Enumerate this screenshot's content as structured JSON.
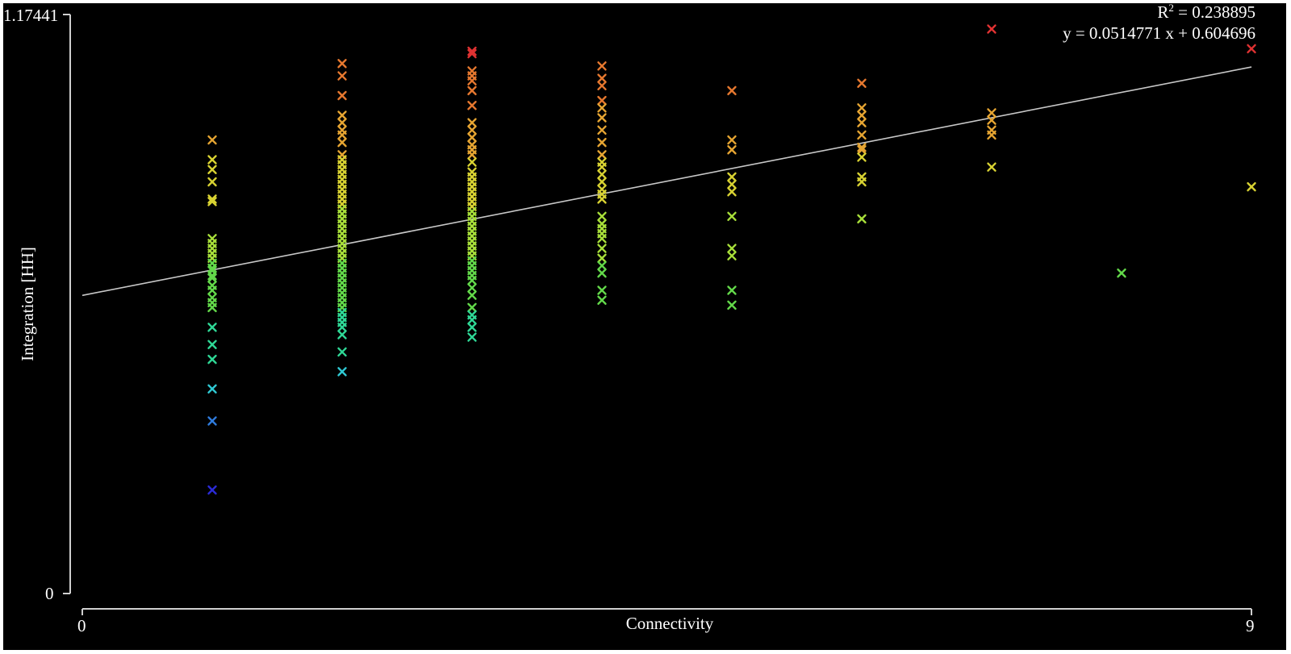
{
  "chart_data": {
    "type": "scatter",
    "title": "",
    "xlabel": "Connectivity",
    "ylabel": "Integration [HH]",
    "xlim": [
      0,
      9
    ],
    "ylim": [
      0,
      1.17441
    ],
    "x_tick_labels": [
      "0",
      "9"
    ],
    "y_tick_labels": [
      "0",
      "1.17441"
    ],
    "grid": false,
    "background": "#000000",
    "annotations": {
      "r2_label": "R",
      "r2_superscript": "2",
      "r2_value": " = 0.238895",
      "equation": "y = 0.0514771 x + 0.604696"
    },
    "regression": {
      "slope": 0.0514771,
      "intercept": 0.604696
    },
    "colormap": [
      "#2b2bd8",
      "#2f7bdc",
      "#2fc8d2",
      "#2fd896",
      "#63d94a",
      "#a8df3a",
      "#d8d232",
      "#e6a532",
      "#e6782f",
      "#e03232"
    ],
    "points": [
      {
        "x": 1,
        "y": 0.92
      },
      {
        "x": 1,
        "y": 0.88
      },
      {
        "x": 1,
        "y": 0.86
      },
      {
        "x": 1,
        "y": 0.835
      },
      {
        "x": 1,
        "y": 0.8
      },
      {
        "x": 1,
        "y": 0.795
      },
      {
        "x": 1,
        "y": 0.72
      },
      {
        "x": 1,
        "y": 0.71
      },
      {
        "x": 1,
        "y": 0.7
      },
      {
        "x": 1,
        "y": 0.69
      },
      {
        "x": 1,
        "y": 0.68
      },
      {
        "x": 1,
        "y": 0.67
      },
      {
        "x": 1,
        "y": 0.66
      },
      {
        "x": 1,
        "y": 0.655
      },
      {
        "x": 1,
        "y": 0.645
      },
      {
        "x": 1,
        "y": 0.64
      },
      {
        "x": 1,
        "y": 0.625
      },
      {
        "x": 1,
        "y": 0.615
      },
      {
        "x": 1,
        "y": 0.6
      },
      {
        "x": 1,
        "y": 0.59
      },
      {
        "x": 1,
        "y": 0.58
      },
      {
        "x": 1,
        "y": 0.54
      },
      {
        "x": 1,
        "y": 0.505
      },
      {
        "x": 1,
        "y": 0.475
      },
      {
        "x": 1,
        "y": 0.415
      },
      {
        "x": 1,
        "y": 0.35
      },
      {
        "x": 1,
        "y": 0.21
      },
      {
        "x": 2,
        "y": 1.075
      },
      {
        "x": 2,
        "y": 1.05
      },
      {
        "x": 2,
        "y": 1.01
      },
      {
        "x": 2,
        "y": 0.97
      },
      {
        "x": 2,
        "y": 0.955
      },
      {
        "x": 2,
        "y": 0.94
      },
      {
        "x": 2,
        "y": 0.93
      },
      {
        "x": 2,
        "y": 0.915
      },
      {
        "x": 2,
        "y": 0.89
      },
      {
        "x": 2,
        "y": 0.88
      },
      {
        "x": 2,
        "y": 0.87
      },
      {
        "x": 2,
        "y": 0.86
      },
      {
        "x": 2,
        "y": 0.85
      },
      {
        "x": 2,
        "y": 0.84
      },
      {
        "x": 2,
        "y": 0.83
      },
      {
        "x": 2,
        "y": 0.82
      },
      {
        "x": 2,
        "y": 0.81
      },
      {
        "x": 2,
        "y": 0.8
      },
      {
        "x": 2,
        "y": 0.79
      },
      {
        "x": 2,
        "y": 0.78
      },
      {
        "x": 2,
        "y": 0.77
      },
      {
        "x": 2,
        "y": 0.76
      },
      {
        "x": 2,
        "y": 0.75
      },
      {
        "x": 2,
        "y": 0.74
      },
      {
        "x": 2,
        "y": 0.73
      },
      {
        "x": 2,
        "y": 0.72
      },
      {
        "x": 2,
        "y": 0.71
      },
      {
        "x": 2,
        "y": 0.7
      },
      {
        "x": 2,
        "y": 0.69
      },
      {
        "x": 2,
        "y": 0.68
      },
      {
        "x": 2,
        "y": 0.67
      },
      {
        "x": 2,
        "y": 0.66
      },
      {
        "x": 2,
        "y": 0.65
      },
      {
        "x": 2,
        "y": 0.64
      },
      {
        "x": 2,
        "y": 0.63
      },
      {
        "x": 2,
        "y": 0.62
      },
      {
        "x": 2,
        "y": 0.61
      },
      {
        "x": 2,
        "y": 0.6
      },
      {
        "x": 2,
        "y": 0.59
      },
      {
        "x": 2,
        "y": 0.58
      },
      {
        "x": 2,
        "y": 0.57
      },
      {
        "x": 2,
        "y": 0.56
      },
      {
        "x": 2,
        "y": 0.55
      },
      {
        "x": 2,
        "y": 0.54
      },
      {
        "x": 2,
        "y": 0.525
      },
      {
        "x": 2,
        "y": 0.49
      },
      {
        "x": 2,
        "y": 0.45
      },
      {
        "x": 3,
        "y": 1.1
      },
      {
        "x": 3,
        "y": 1.095
      },
      {
        "x": 3,
        "y": 1.06
      },
      {
        "x": 3,
        "y": 1.05
      },
      {
        "x": 3,
        "y": 1.04
      },
      {
        "x": 3,
        "y": 1.02
      },
      {
        "x": 3,
        "y": 0.99
      },
      {
        "x": 3,
        "y": 0.955
      },
      {
        "x": 3,
        "y": 0.94
      },
      {
        "x": 3,
        "y": 0.925
      },
      {
        "x": 3,
        "y": 0.91
      },
      {
        "x": 3,
        "y": 0.9
      },
      {
        "x": 3,
        "y": 0.89
      },
      {
        "x": 3,
        "y": 0.875
      },
      {
        "x": 3,
        "y": 0.855
      },
      {
        "x": 3,
        "y": 0.845
      },
      {
        "x": 3,
        "y": 0.835
      },
      {
        "x": 3,
        "y": 0.825
      },
      {
        "x": 3,
        "y": 0.815
      },
      {
        "x": 3,
        "y": 0.805
      },
      {
        "x": 3,
        "y": 0.795
      },
      {
        "x": 3,
        "y": 0.785
      },
      {
        "x": 3,
        "y": 0.775
      },
      {
        "x": 3,
        "y": 0.765
      },
      {
        "x": 3,
        "y": 0.755
      },
      {
        "x": 3,
        "y": 0.745
      },
      {
        "x": 3,
        "y": 0.735
      },
      {
        "x": 3,
        "y": 0.725
      },
      {
        "x": 3,
        "y": 0.715
      },
      {
        "x": 3,
        "y": 0.705
      },
      {
        "x": 3,
        "y": 0.695
      },
      {
        "x": 3,
        "y": 0.685
      },
      {
        "x": 3,
        "y": 0.675
      },
      {
        "x": 3,
        "y": 0.665
      },
      {
        "x": 3,
        "y": 0.655
      },
      {
        "x": 3,
        "y": 0.645
      },
      {
        "x": 3,
        "y": 0.635
      },
      {
        "x": 3,
        "y": 0.62
      },
      {
        "x": 3,
        "y": 0.605
      },
      {
        "x": 3,
        "y": 0.58
      },
      {
        "x": 3,
        "y": 0.565
      },
      {
        "x": 3,
        "y": 0.555
      },
      {
        "x": 3,
        "y": 0.54
      },
      {
        "x": 3,
        "y": 0.52
      },
      {
        "x": 4,
        "y": 1.07
      },
      {
        "x": 4,
        "y": 1.045
      },
      {
        "x": 4,
        "y": 1.03
      },
      {
        "x": 4,
        "y": 1.0
      },
      {
        "x": 4,
        "y": 0.985
      },
      {
        "x": 4,
        "y": 0.965
      },
      {
        "x": 4,
        "y": 0.94
      },
      {
        "x": 4,
        "y": 0.915
      },
      {
        "x": 4,
        "y": 0.89
      },
      {
        "x": 4,
        "y": 0.875
      },
      {
        "x": 4,
        "y": 0.865
      },
      {
        "x": 4,
        "y": 0.85
      },
      {
        "x": 4,
        "y": 0.835
      },
      {
        "x": 4,
        "y": 0.82
      },
      {
        "x": 4,
        "y": 0.81
      },
      {
        "x": 4,
        "y": 0.8
      },
      {
        "x": 4,
        "y": 0.765
      },
      {
        "x": 4,
        "y": 0.75
      },
      {
        "x": 4,
        "y": 0.74
      },
      {
        "x": 4,
        "y": 0.73
      },
      {
        "x": 4,
        "y": 0.72
      },
      {
        "x": 4,
        "y": 0.7
      },
      {
        "x": 4,
        "y": 0.68
      },
      {
        "x": 4,
        "y": 0.665
      },
      {
        "x": 4,
        "y": 0.65
      },
      {
        "x": 4,
        "y": 0.615
      },
      {
        "x": 4,
        "y": 0.595
      },
      {
        "x": 5,
        "y": 1.02
      },
      {
        "x": 5,
        "y": 0.92
      },
      {
        "x": 5,
        "y": 0.9
      },
      {
        "x": 5,
        "y": 0.845
      },
      {
        "x": 5,
        "y": 0.83
      },
      {
        "x": 5,
        "y": 0.815
      },
      {
        "x": 5,
        "y": 0.765
      },
      {
        "x": 5,
        "y": 0.7
      },
      {
        "x": 5,
        "y": 0.685
      },
      {
        "x": 5,
        "y": 0.615
      },
      {
        "x": 5,
        "y": 0.585
      },
      {
        "x": 6,
        "y": 1.035
      },
      {
        "x": 6,
        "y": 0.985
      },
      {
        "x": 6,
        "y": 0.97
      },
      {
        "x": 6,
        "y": 0.955
      },
      {
        "x": 6,
        "y": 0.93
      },
      {
        "x": 6,
        "y": 0.905
      },
      {
        "x": 6,
        "y": 0.9
      },
      {
        "x": 6,
        "y": 0.885
      },
      {
        "x": 6,
        "y": 0.845
      },
      {
        "x": 6,
        "y": 0.835
      },
      {
        "x": 6,
        "y": 0.76
      },
      {
        "x": 7,
        "y": 1.145
      },
      {
        "x": 7,
        "y": 0.975
      },
      {
        "x": 7,
        "y": 0.96
      },
      {
        "x": 7,
        "y": 0.94
      },
      {
        "x": 7,
        "y": 0.93
      },
      {
        "x": 7,
        "y": 0.865
      },
      {
        "x": 8,
        "y": 0.65
      },
      {
        "x": 9,
        "y": 1.105
      },
      {
        "x": 9,
        "y": 0.825
      }
    ]
  }
}
